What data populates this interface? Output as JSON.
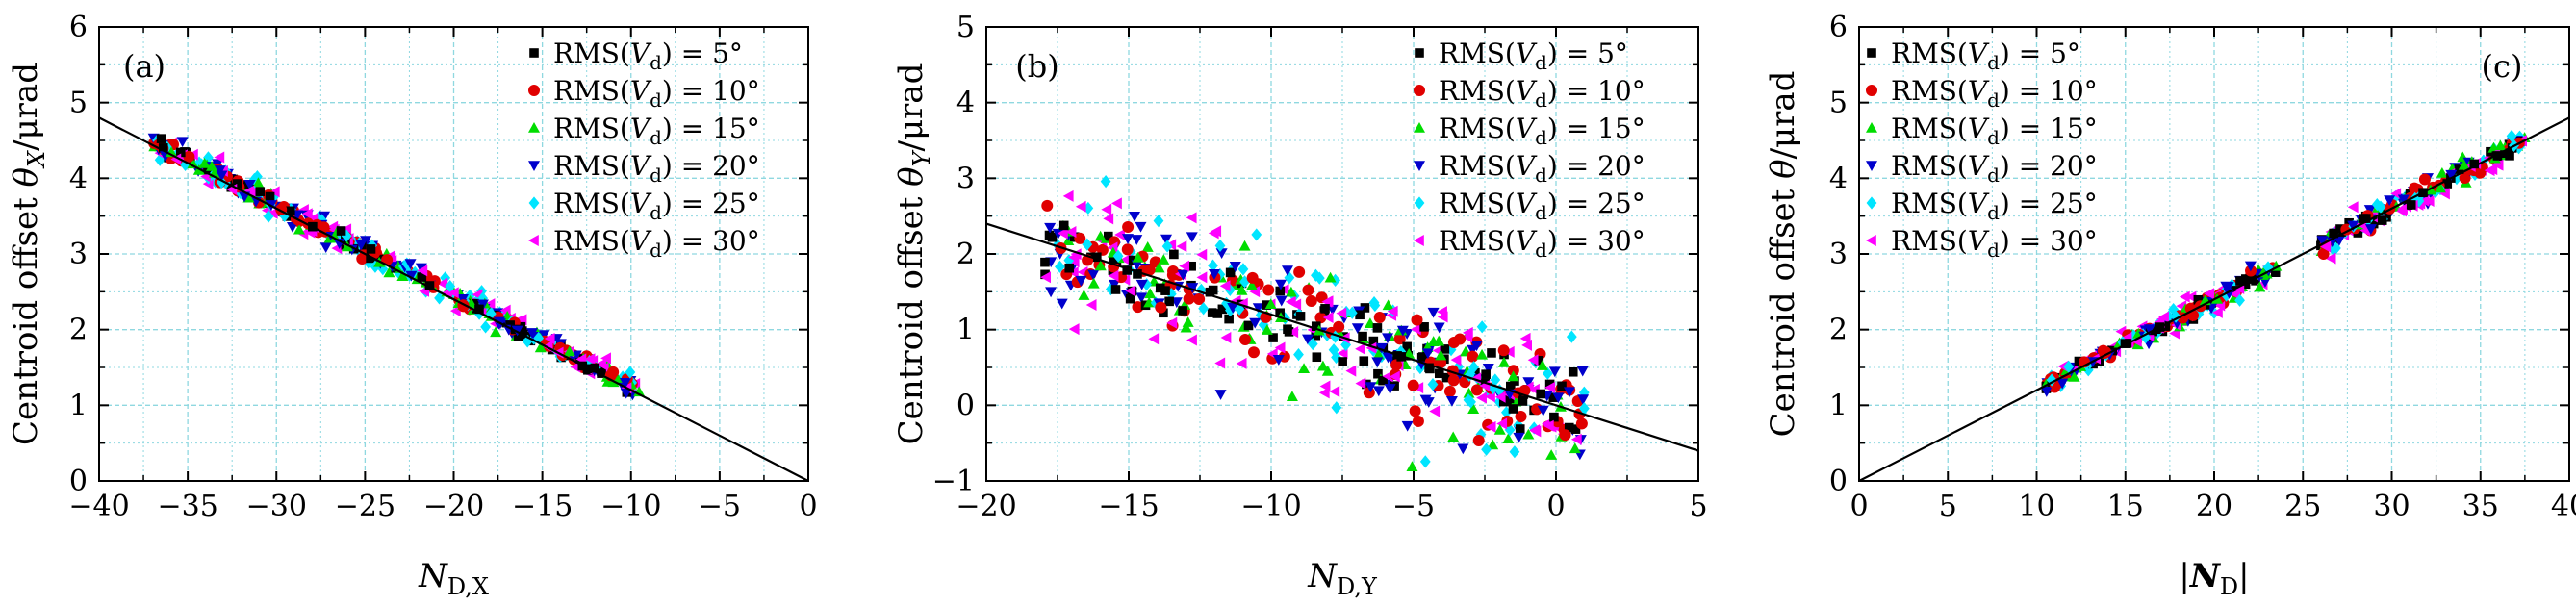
{
  "chart_data": [
    {
      "type": "scatter",
      "panel": "(a)",
      "xlabel": "N_D,X",
      "ylabel": "Centroid offset θ_X/μrad",
      "xlim": [
        -40,
        0
      ],
      "ylim": [
        0,
        6
      ],
      "xticks": [
        "−40",
        "−35",
        "−30",
        "−25",
        "−20",
        "−15",
        "−10",
        "−5",
        "0"
      ],
      "xtick_values": [
        -40,
        -35,
        -30,
        -25,
        -20,
        -15,
        -10,
        -5,
        0
      ],
      "yticks": [
        "0",
        "1",
        "2",
        "3",
        "4",
        "5",
        "6"
      ],
      "ytick_values": [
        0,
        1,
        2,
        3,
        4,
        5,
        6
      ],
      "grid": true,
      "legend_position": "top-right",
      "fit_line": {
        "x": [
          -40,
          0
        ],
        "y": [
          4.8,
          0
        ]
      },
      "clusters": [
        {
          "x_range": [
            -37,
            -23
          ],
          "slope": -0.12,
          "intercept": 0.05,
          "spread": 0.09
        },
        {
          "x_range": [
            -23,
            -9.5
          ],
          "slope": -0.12,
          "intercept": 0.05,
          "spread": 0.07
        }
      ]
    },
    {
      "type": "scatter",
      "panel": "(b)",
      "xlabel": "N_D,Y",
      "ylabel": "Centroid offset θ_Y/μrad",
      "xlim": [
        -20,
        5
      ],
      "ylim": [
        -1,
        5
      ],
      "xticks": [
        "−20",
        "−15",
        "−10",
        "−5",
        "0",
        "5"
      ],
      "xtick_values": [
        -20,
        -15,
        -10,
        -5,
        0,
        5
      ],
      "yticks": [
        "−1",
        "0",
        "1",
        "2",
        "3",
        "4",
        "5"
      ],
      "ytick_values": [
        -1,
        0,
        1,
        2,
        3,
        4,
        5
      ],
      "grid": true,
      "legend_position": "top-right",
      "fit_line": {
        "x": [
          -20,
          5
        ],
        "y": [
          2.4,
          -0.6
        ]
      },
      "clusters": [
        {
          "x_range": [
            -18,
            1
          ],
          "slope": -0.12,
          "intercept": 0.0,
          "spread": 0.42
        }
      ]
    },
    {
      "type": "scatter",
      "panel": "(c)",
      "xlabel": "|N_D|",
      "ylabel": "Centroid offset θ/μrad",
      "xlim": [
        0,
        40
      ],
      "ylim": [
        0,
        6
      ],
      "xticks": [
        "0",
        "5",
        "10",
        "15",
        "20",
        "25",
        "30",
        "35",
        "40"
      ],
      "xtick_values": [
        0,
        5,
        10,
        15,
        20,
        25,
        30,
        35,
        40
      ],
      "yticks": [
        "0",
        "1",
        "2",
        "3",
        "4",
        "5",
        "6"
      ],
      "ytick_values": [
        0,
        1,
        2,
        3,
        4,
        5,
        6
      ],
      "grid": true,
      "legend_position": "top-left",
      "fit_line": {
        "x": [
          0,
          40
        ],
        "y": [
          0,
          4.8
        ]
      },
      "clusters": [
        {
          "x_range": [
            10.5,
            23.5
          ],
          "slope": 0.12,
          "intercept": 0.0,
          "spread": 0.07
        },
        {
          "x_range": [
            26,
            37.5
          ],
          "slope": 0.12,
          "intercept": 0.0,
          "spread": 0.09
        }
      ]
    }
  ],
  "legend": [
    {
      "label": "RMS(V_d) = 5°",
      "marker": "square",
      "color": "#000000"
    },
    {
      "label": "RMS(V_d) = 10°",
      "marker": "circle",
      "color": "#e00000"
    },
    {
      "label": "RMS(V_d) = 15°",
      "marker": "triangle-up",
      "color": "#00dd00"
    },
    {
      "label": "RMS(V_d) = 20°",
      "marker": "triangle-down",
      "color": "#0000cc"
    },
    {
      "label": "RMS(V_d) = 25°",
      "marker": "diamond",
      "color": "#00e5ff"
    },
    {
      "label": "RMS(V_d) = 30°",
      "marker": "triangle-left",
      "color": "#ff00ff"
    }
  ],
  "legend_display": [
    {
      "prefix": "RMS(",
      "var": "V",
      "sub": "d",
      "suffix": ") = 5°"
    },
    {
      "prefix": "RMS(",
      "var": "V",
      "sub": "d",
      "suffix": ") = 10°"
    },
    {
      "prefix": "RMS(",
      "var": "V",
      "sub": "d",
      "suffix": ") = 15°"
    },
    {
      "prefix": "RMS(",
      "var": "V",
      "sub": "d",
      "suffix": ") = 20°"
    },
    {
      "prefix": "RMS(",
      "var": "V",
      "sub": "d",
      "suffix": ") = 25°"
    },
    {
      "prefix": "RMS(",
      "var": "V",
      "sub": "d",
      "suffix": ") = 30°"
    }
  ],
  "axis_label_display": {
    "a": {
      "x": {
        "main": "N",
        "sub": "D,X"
      },
      "y": {
        "pre": "Centroid offset ",
        "var": "θ",
        "sub": "X",
        "post": "/μrad"
      }
    },
    "b": {
      "x": {
        "main": "N",
        "sub": "D,Y"
      },
      "y": {
        "pre": "Centroid offset ",
        "var": "θ",
        "sub": "Y",
        "post": "/μrad"
      }
    },
    "c": {
      "x": {
        "pre": "|",
        "main": "N",
        "sub": "D",
        "post": "|"
      },
      "y": {
        "pre": "Centroid offset ",
        "var": "θ",
        "sub": "",
        "post": "/μrad"
      }
    }
  },
  "colors": {
    "grid": "#8fd8e0",
    "fit_line": "#000000",
    "axis": "#000000"
  }
}
